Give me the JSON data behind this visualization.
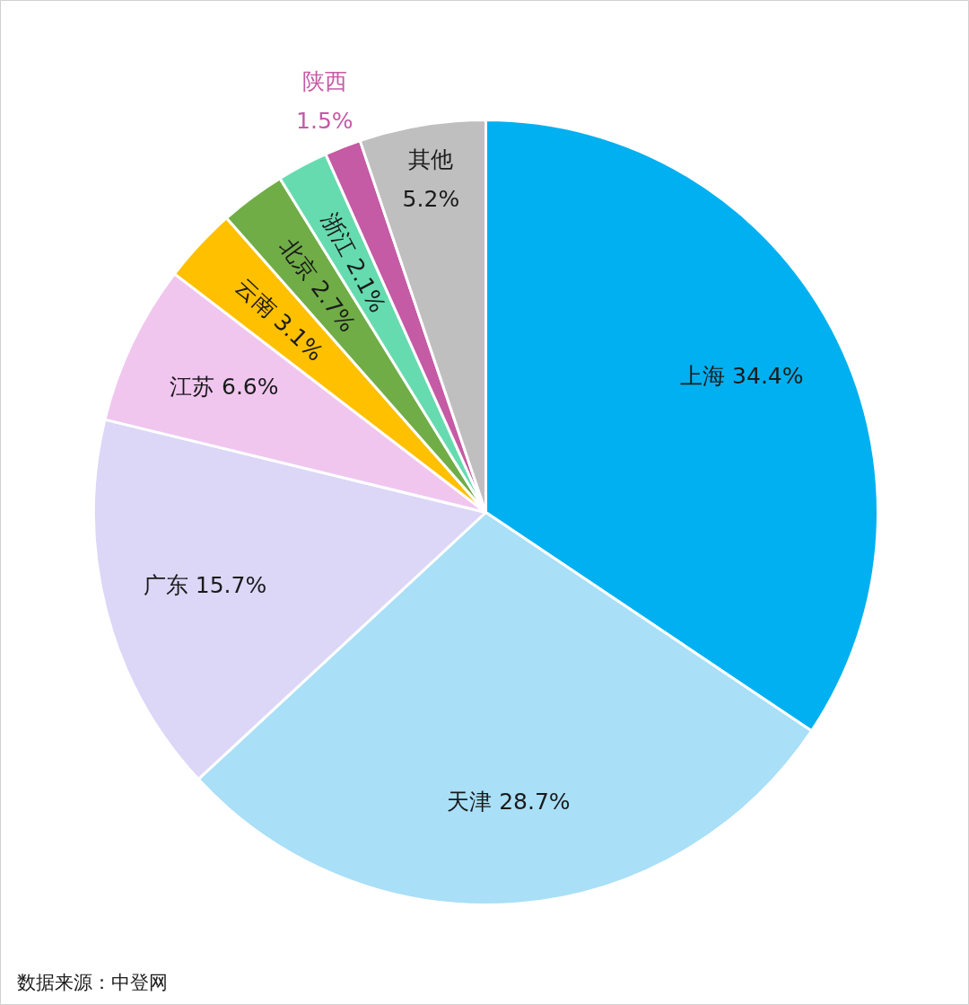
{
  "chart_data": {
    "type": "pie",
    "categories": [
      "上海",
      "天津",
      "广东",
      "江苏",
      "云南",
      "北京",
      "浙江",
      "陕西",
      "其他"
    ],
    "values": [
      34.4,
      28.7,
      15.7,
      6.6,
      3.1,
      2.7,
      2.1,
      1.5,
      5.2
    ],
    "colors": [
      "#00b0f0",
      "#a9dff7",
      "#dcd6f7",
      "#f0c6ef",
      "#ffc000",
      "#70ad47",
      "#66dbb0",
      "#c55aa5",
      "#bfbfbf"
    ],
    "value_labels": [
      "34.4%",
      "28.7%",
      "15.7%",
      "6.6%",
      "3.1%",
      "2.7%",
      "2.1%",
      "1.5%",
      "5.2%"
    ],
    "annotations": [
      "数据来源：中登网"
    ]
  }
}
